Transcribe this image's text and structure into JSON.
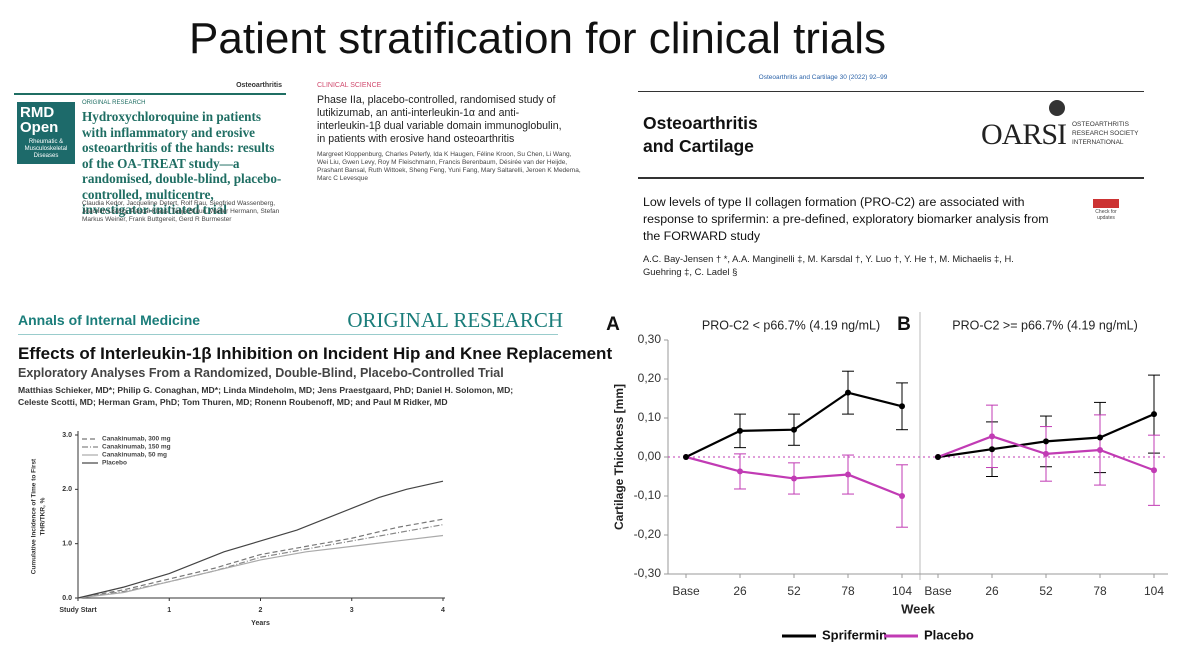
{
  "title": "Patient stratification for clinical trials",
  "papers": [
    {
      "journal": "RMD Open",
      "journal_sub": "Rheumatic & Musculoskeletal Diseases",
      "topic": "Osteoarthritis",
      "section": "ORIGINAL RESEARCH",
      "title": "Hydroxychloroquine in patients with inflammatory and erosive osteoarthritis of the hands: results of the OA-TREAT study—a randomised, double-blind, placebo-controlled, multicentre, investigator-initiated trial",
      "authors": "Claudia Kedor, Jacqueline Detert, Rolf Rau, Siegfried Wassenberg, Joachim Listing, Pascal Klaus, Tanja Braun, Walter Hermann, Stefan Markus Weiner, Frank Buttgereit, Gerd R Burmester"
    },
    {
      "section": "CLINICAL SCIENCE",
      "title": "Phase IIa, placebo-controlled, randomised study of lutikizumab, an anti-interleukin-1α and anti-interleukin-1β dual variable domain immunoglobulin, in patients with erosive hand osteoarthritis",
      "authors": "Margreet Kloppenburg, Charles Peterfy, Ida K Haugen, Féline Kroon, Su Chen, Li Wang, Wei Liu, Gwen Levy, Roy M Fleischmann, Francis Berenbaum, Désirée van der Heijde, Prashant Bansal, Ruth Wittoek, Sheng Feng, Yuni Fang, Mary Saltarelli, Jeroen K Medema, Marc C Levesque"
    },
    {
      "citation": "Osteoarthritis and Cartilage 30 (2022) 92–99",
      "journal": "Osteoarthritis and Cartilage",
      "logo": "OARSI",
      "logo_sub": "OSTEOARTHRITIS RESEARCH SOCIETY INTERNATIONAL",
      "badge": "Check for updates",
      "title": "Low levels of type II collagen formation (PRO-C2) are associated with response to sprifermin: a pre-defined, exploratory biomarker analysis from the FORWARD study",
      "authors": "A.C. Bay-Jensen † *, A.A. Manginelli ‡, M. Karsdal †, Y. Luo †, Y. He †, M. Michaelis ‡, H. Guehring ‡, C. Ladel §"
    },
    {
      "journal": "Annals of Internal Medicine",
      "section": "ORIGINAL RESEARCH",
      "title": "Effects of Interleukin-1β Inhibition on Incident Hip and Knee Replacement",
      "subtitle": "Exploratory Analyses From a Randomized, Double-Blind, Placebo-Controlled Trial",
      "authors": "Matthias Schieker, MD*; Philip G. Conaghan, MD*; Linda Mindeholm, MD; Jens Praestgaard, PhD; Daniel H. Solomon, MD; Celeste Scotti, MD; Herman Gram, PhD; Tom Thuren, MD; Ronenn Roubenoff, MD; and Paul M Ridker, MD"
    }
  ],
  "incidence_chart": {
    "type": "line",
    "ylabel": [
      "Cumulative Incidence of Time to First",
      "THR/TKR, %"
    ],
    "xlabel": "Years",
    "xlim": [
      0,
      4
    ],
    "ylim": [
      0,
      3
    ],
    "xticks": [
      {
        "value": 0,
        "label": "Study Start"
      },
      1,
      2,
      3,
      4
    ],
    "yticks": [
      {
        "value": 0,
        "label": "0.0"
      },
      {
        "value": 1,
        "label": "1.0"
      },
      {
        "value": 2,
        "label": "2.0"
      },
      {
        "value": 3,
        "label": "3.0"
      }
    ],
    "series": [
      {
        "name": "Canakinumab, 300 mg",
        "color": "#777777",
        "style": "dashed",
        "x": [
          0,
          0.5,
          1,
          1.5,
          2,
          2.5,
          3,
          3.5,
          4
        ],
        "values": [
          0,
          0.15,
          0.35,
          0.55,
          0.8,
          0.95,
          1.1,
          1.3,
          1.45
        ]
      },
      {
        "name": "Canakinumab, 150 mg",
        "color": "#888888",
        "style": "dash-dot",
        "x": [
          0,
          0.5,
          1,
          1.5,
          2,
          2.5,
          3,
          3.5,
          4
        ],
        "values": [
          0,
          0.12,
          0.3,
          0.5,
          0.75,
          0.9,
          1.05,
          1.2,
          1.35
        ]
      },
      {
        "name": "Canakinumab, 50 mg",
        "color": "#aaaaaa",
        "style": "solid",
        "x": [
          0,
          0.5,
          1,
          1.5,
          2,
          2.5,
          3,
          3.5,
          4
        ],
        "values": [
          0,
          0.1,
          0.3,
          0.5,
          0.7,
          0.85,
          0.95,
          1.05,
          1.15
        ]
      },
      {
        "name": "Placebo",
        "color": "#444444",
        "style": "solid",
        "x": [
          0,
          0.5,
          1,
          1.3,
          1.6,
          2,
          2.4,
          2.7,
          3,
          3.3,
          3.6,
          4
        ],
        "values": [
          0,
          0.2,
          0.45,
          0.65,
          0.85,
          1.05,
          1.25,
          1.45,
          1.65,
          1.85,
          2.0,
          2.15
        ]
      }
    ]
  },
  "cartilage_chart": {
    "type": "line",
    "ylabel": "Cartilage Thickness [mm]",
    "xlabel": "Week",
    "categories": [
      "Base",
      "26",
      "52",
      "78",
      "104"
    ],
    "ylim": [
      -0.3,
      0.3
    ],
    "yticks": [
      {
        "value": 0.3,
        "label": "0,30"
      },
      {
        "value": 0.2,
        "label": "0,20"
      },
      {
        "value": 0.1,
        "label": "0,10"
      },
      {
        "value": 0,
        "label": "0,00"
      },
      {
        "value": -0.1,
        "label": "-0,10"
      },
      {
        "value": -0.2,
        "label": "-0,20"
      },
      {
        "value": -0.3,
        "label": "-0,30"
      }
    ],
    "legend": [
      {
        "name": "Sprifermin",
        "color": "#000000"
      },
      {
        "name": "Placebo",
        "color": "#c13bb4"
      }
    ],
    "panels": [
      {
        "label": "A",
        "subtitle": "PRO-C2 < p66.7% (4.19 ng/mL)",
        "series": [
          {
            "values": [
              0,
              0.067,
              0.07,
              0.165,
              0.13
            ],
            "errors": [
              null,
              0.043,
              0.04,
              0.055,
              0.06
            ]
          },
          {
            "values": [
              0,
              -0.037,
              -0.055,
              -0.045,
              -0.1
            ],
            "errors": [
              null,
              0.045,
              0.04,
              0.05,
              0.08
            ]
          }
        ]
      },
      {
        "label": "B",
        "subtitle": "PRO-C2 >= p66.7% (4.19 ng/mL)",
        "series": [
          {
            "values": [
              0,
              0.02,
              0.04,
              0.05,
              0.11
            ],
            "errors": [
              null,
              0.07,
              0.065,
              0.09,
              0.1
            ]
          },
          {
            "values": [
              0,
              0.053,
              0.008,
              0.018,
              -0.034
            ],
            "errors": [
              null,
              0.08,
              0.07,
              0.09,
              0.09
            ]
          }
        ]
      }
    ]
  }
}
